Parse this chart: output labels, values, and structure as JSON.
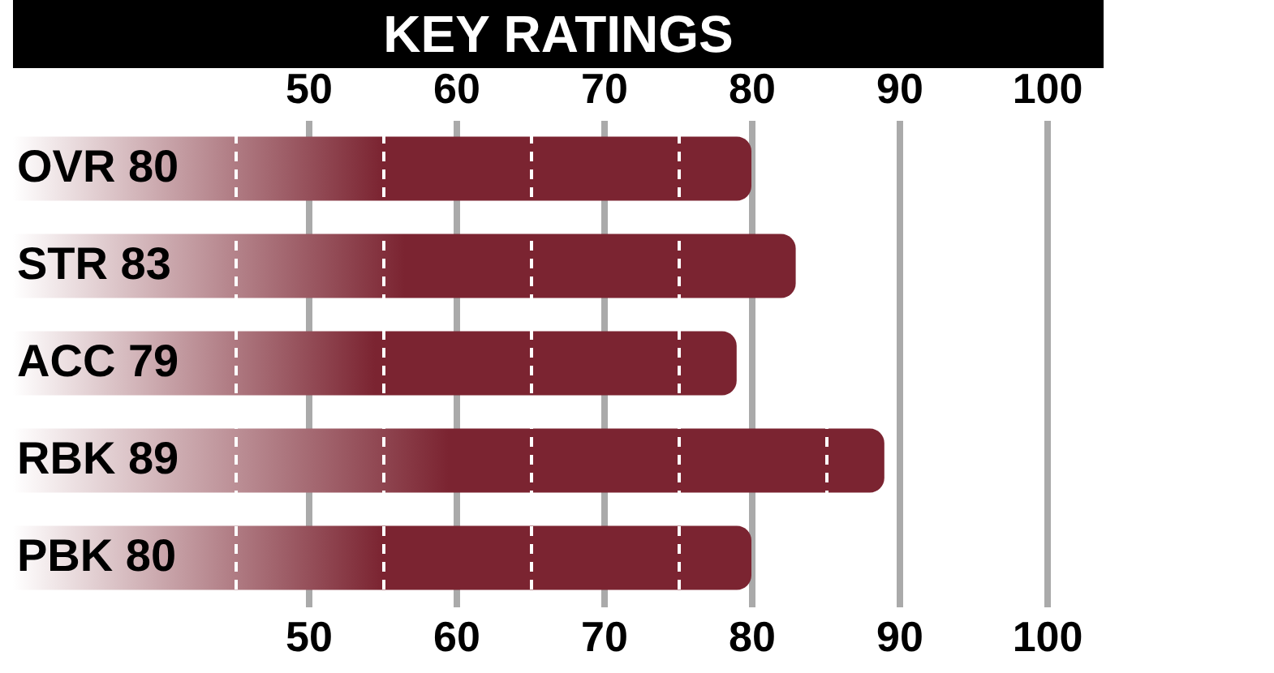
{
  "chart_data": {
    "type": "bar",
    "title": "KEY RATINGS",
    "orientation": "horizontal",
    "categories": [
      "OVR 80",
      "STR 83",
      "ACC 79",
      "RBK 89",
      "PBK 80"
    ],
    "values": [
      80,
      83,
      79,
      89,
      80
    ],
    "color": "#7b2431",
    "xlim": [
      30,
      100
    ],
    "xticks": [
      {
        "value": 45,
        "label": null
      },
      50,
      {
        "value": 55,
        "label": null
      },
      60,
      {
        "value": 65,
        "label": null
      },
      70,
      {
        "value": 75,
        "label": null
      },
      80,
      {
        "value": 85,
        "label": null
      },
      90,
      100
    ],
    "x2lim": [
      30,
      100
    ],
    "x2ticks": [
      50,
      60,
      70,
      80,
      90,
      100
    ],
    "grid": "x"
  }
}
